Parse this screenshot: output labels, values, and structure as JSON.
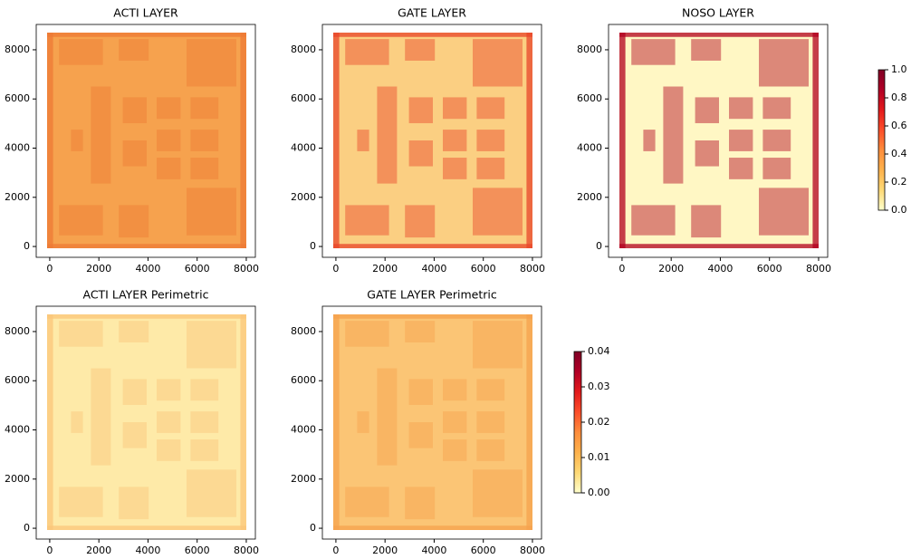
{
  "chart_data": [
    {
      "type": "heatmap",
      "title": "ACTI LAYER",
      "color": "#f6a24e",
      "accent": "#ee7a35",
      "xlim": [
        -550,
        8370
      ],
      "xticks": [
        0,
        2000,
        4000,
        6000,
        8000
      ],
      "ylim": [
        -440,
        9030
      ],
      "yticks": [
        0,
        2000,
        4000,
        6000,
        8000
      ]
    },
    {
      "type": "heatmap",
      "title": "GATE LAYER",
      "color": "#fbcf82",
      "accent": "#e8452a",
      "xlim": [
        -550,
        8370
      ],
      "xticks": [
        0,
        2000,
        4000,
        6000,
        8000
      ],
      "ylim": [
        -440,
        9030
      ],
      "yticks": [
        0,
        2000,
        4000,
        6000,
        8000
      ]
    },
    {
      "type": "heatmap",
      "title": "NOSO LAYER",
      "color": "#fff7c4",
      "accent": "#b2001f",
      "xlim": [
        -550,
        8370
      ],
      "xticks": [
        0,
        2000,
        4000,
        6000,
        8000
      ],
      "ylim": [
        -440,
        9030
      ],
      "yticks": [
        0,
        2000,
        4000,
        6000,
        8000
      ]
    },
    {
      "type": "heatmap",
      "title": "ACTI LAYER Perimetric",
      "color": "#feeaa8",
      "accent": "#fbc57a",
      "xlim": [
        -550,
        8370
      ],
      "xticks": [
        0,
        2000,
        4000,
        6000,
        8000
      ],
      "ylim": [
        -440,
        9030
      ],
      "yticks": [
        0,
        2000,
        4000,
        6000,
        8000
      ]
    },
    {
      "type": "heatmap",
      "title": "GATE LAYER Perimetric",
      "color": "#fbc575",
      "accent": "#f6a24e",
      "xlim": [
        -550,
        8370
      ],
      "xticks": [
        0,
        2000,
        4000,
        6000,
        8000
      ],
      "ylim": [
        -440,
        9030
      ],
      "yticks": [
        0,
        2000,
        4000,
        6000,
        8000
      ]
    },
    {
      "type": "colorbar",
      "colors": [
        "#ffffcc",
        "#fed976",
        "#feb24c",
        "#fd8d3c",
        "#fc4e2a",
        "#e31a1c",
        "#b10026",
        "#800026"
      ],
      "ylim": [
        0,
        1
      ],
      "yticks": [
        {
          "value": 0,
          "label": "0.0"
        },
        0.2,
        0.4,
        0.6,
        0.8,
        {
          "value": 1,
          "label": "1.0"
        }
      ]
    },
    {
      "type": "colorbar",
      "colors": [
        "#ffffcc",
        "#fed976",
        "#feb24c",
        "#fd8d3c",
        "#fc4e2a",
        "#e31a1c",
        "#b10026",
        "#800026"
      ],
      "ylim": [
        0,
        0.04
      ],
      "yticks": [
        {
          "value": 0,
          "label": "0.00"
        },
        0.01,
        0.02,
        0.03,
        0.04
      ]
    }
  ]
}
